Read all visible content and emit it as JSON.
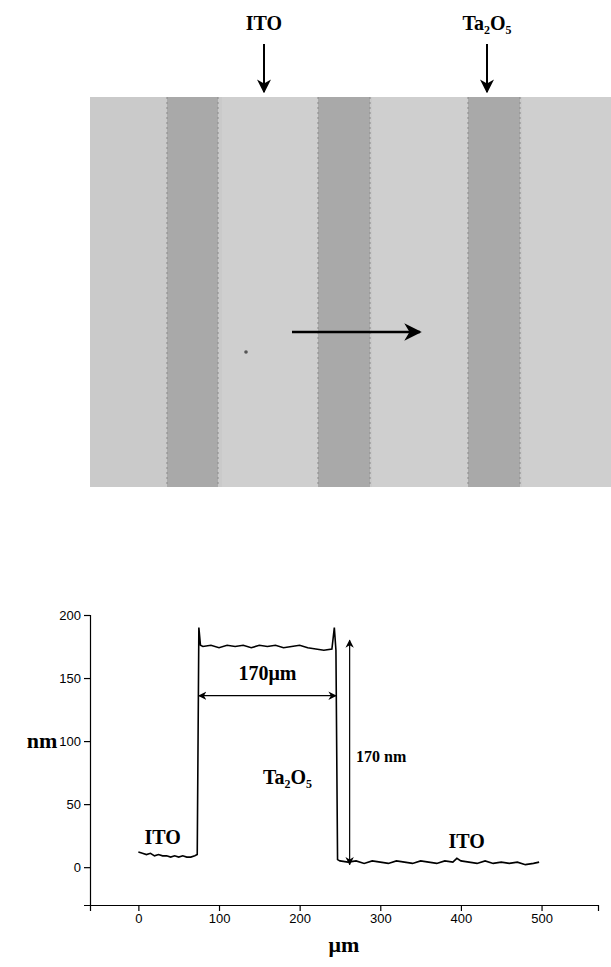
{
  "chart_data": {
    "type": "line",
    "x_label": "μm",
    "y_label": "nm",
    "x": [
      0,
      5,
      10,
      15,
      20,
      25,
      30,
      35,
      40,
      45,
      50,
      55,
      60,
      65,
      70,
      73,
      75,
      77,
      80,
      90,
      100,
      110,
      120,
      130,
      140,
      150,
      160,
      170,
      180,
      190,
      200,
      210,
      220,
      230,
      240,
      243,
      245,
      247,
      250,
      260,
      270,
      280,
      290,
      300,
      310,
      320,
      330,
      340,
      350,
      360,
      370,
      380,
      390,
      395,
      400,
      410,
      420,
      430,
      440,
      450,
      460,
      470,
      480,
      490,
      497
    ],
    "values": [
      12,
      11,
      10,
      11,
      9,
      10,
      9,
      9,
      8,
      9,
      8,
      9,
      8,
      8,
      9,
      10,
      190,
      176,
      175,
      176,
      174,
      176,
      175,
      176,
      174,
      176,
      175,
      176,
      174,
      175,
      176,
      174,
      173,
      172,
      173,
      190,
      172,
      6,
      5,
      4,
      5,
      3,
      5,
      4,
      3,
      5,
      4,
      3,
      5,
      4,
      3,
      5,
      4,
      7,
      5,
      4,
      3,
      5,
      3,
      4,
      3,
      4,
      2,
      3,
      4
    ],
    "color": "#000000",
    "xlim": [
      -60,
      570
    ],
    "xticks": [
      0,
      100,
      200,
      300,
      400,
      500
    ],
    "ylim": [
      -30,
      200
    ],
    "yticks": [
      0,
      50,
      100,
      150,
      200
    ],
    "grid": false,
    "annotations": [
      {
        "text": "ITO",
        "x": 30,
        "y": 22
      },
      {
        "text": "Ta₂O₅",
        "x": 185,
        "y": 70
      },
      {
        "text": "ITO",
        "x": 407,
        "y": 19
      },
      {
        "text": "170μm",
        "x": 160,
        "y": 152,
        "arrow_x1": 75,
        "arrow_x2": 245,
        "arrow_y": 136
      },
      {
        "text": "170 nm",
        "x": 270,
        "y": 86,
        "arrow_x": 262,
        "arrow_y1": 180,
        "arrow_y2": 2
      }
    ]
  },
  "micrograph": {
    "labels": [
      "ITO",
      "Ta₂O₅"
    ]
  }
}
